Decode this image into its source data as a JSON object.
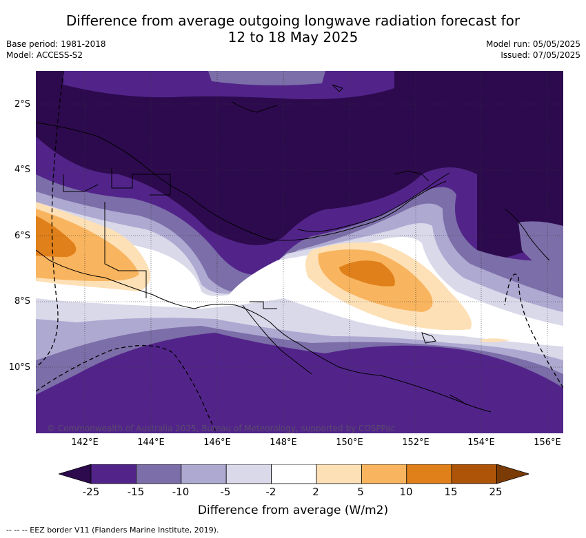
{
  "title_line1": "Difference from average outgoing longwave radiation forecast for",
  "title_line2": "12 to 18 May 2025",
  "base_period": "Base period: 1981-2018",
  "model": "Model: ACCESS-S2",
  "model_run": "Model run: 05/05/2025",
  "issued": "Issued: 07/05/2025",
  "lat_labels": [
    "2°S",
    "4°S",
    "6°S",
    "8°S",
    "10°S"
  ],
  "lon_labels": [
    "142°E",
    "144°E",
    "146°E",
    "148°E",
    "150°E",
    "152°E",
    "154°E",
    "156°E"
  ],
  "copyright": "© Commonwealth of Australia 2025, Bureau of Meteorology, supported by COSPPac",
  "colorbar": {
    "ticks": [
      "-25",
      "-15",
      "-10",
      "-5",
      "-2",
      "2",
      "5",
      "10",
      "15",
      "25"
    ],
    "colors": [
      "#2d0a4e",
      "#52248a",
      "#7c6ea8",
      "#aea9d1",
      "#d9d9ea",
      "#ffffff",
      "#fde0b6",
      "#f8b45e",
      "#e0801a",
      "#ad5408",
      "#7a3b06"
    ],
    "label": "Difference from average (W/m2)"
  },
  "footer": "--  --  -- EEZ border V11 (Flanders Marine Institute, 2019)."
}
